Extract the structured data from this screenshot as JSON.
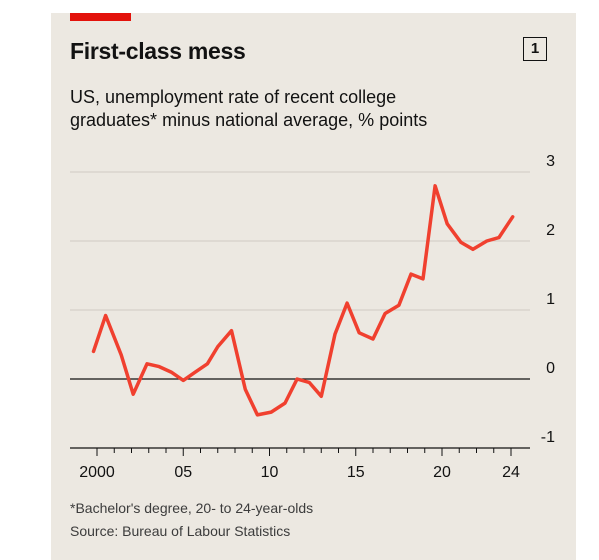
{
  "header": {
    "title": "First-class mess",
    "badge": "1",
    "subtitle_line1": "US, unemployment rate of recent college",
    "subtitle_line2": "graduates* minus national average, % points"
  },
  "footer": {
    "footnote": "*Bachelor's degree, 20- to 24-year-olds",
    "source": "Source: Bureau of Labour Statistics"
  },
  "colors": {
    "background": "#ece8e1",
    "line": "#f0402f",
    "accent": "#e3120b",
    "grid": "#cfcac3",
    "zero_line": "#121212"
  },
  "chart_data": {
    "type": "line",
    "title": "First-class mess",
    "subtitle": "US, unemployment rate of recent college graduates* minus national average, % points",
    "xlabel": "",
    "ylabel": "",
    "xlim": [
      2000,
      2024
    ],
    "ylim": [
      -1,
      3
    ],
    "x_ticks": [
      2000,
      2005,
      2010,
      2015,
      2020,
      2024
    ],
    "x_tick_labels": [
      "2000",
      "05",
      "10",
      "15",
      "20",
      "24"
    ],
    "y_ticks": [
      -1,
      0,
      1,
      2,
      3
    ],
    "y_tick_labels": [
      "-1",
      "0",
      "1",
      "2",
      "3"
    ],
    "grid": true,
    "series": [
      {
        "name": "",
        "x": [
          1999.8,
          2000.5,
          2001.4,
          2002.1,
          2002.9,
          2003.6,
          2004.3,
          2005.0,
          2005.7,
          2006.4,
          2007.0,
          2007.8,
          2008.6,
          2009.3,
          2010.1,
          2010.9,
          2011.6,
          2012.3,
          2013.0,
          2013.8,
          2014.5,
          2015.2,
          2016.0,
          2016.7,
          2017.5,
          2018.2,
          2018.9,
          2019.6,
          2020.3,
          2021.1,
          2021.8,
          2022.6,
          2023.3,
          2024.1
        ],
        "values": [
          0.4,
          0.92,
          0.35,
          -0.22,
          0.22,
          0.18,
          0.1,
          -0.02,
          0.1,
          0.22,
          0.47,
          0.7,
          -0.15,
          -0.52,
          -0.48,
          -0.35,
          0.0,
          -0.05,
          -0.25,
          0.65,
          1.1,
          0.67,
          0.58,
          0.95,
          1.07,
          1.52,
          1.45,
          2.8,
          2.25,
          1.98,
          1.88,
          2.0,
          2.05,
          2.35
        ]
      }
    ]
  }
}
